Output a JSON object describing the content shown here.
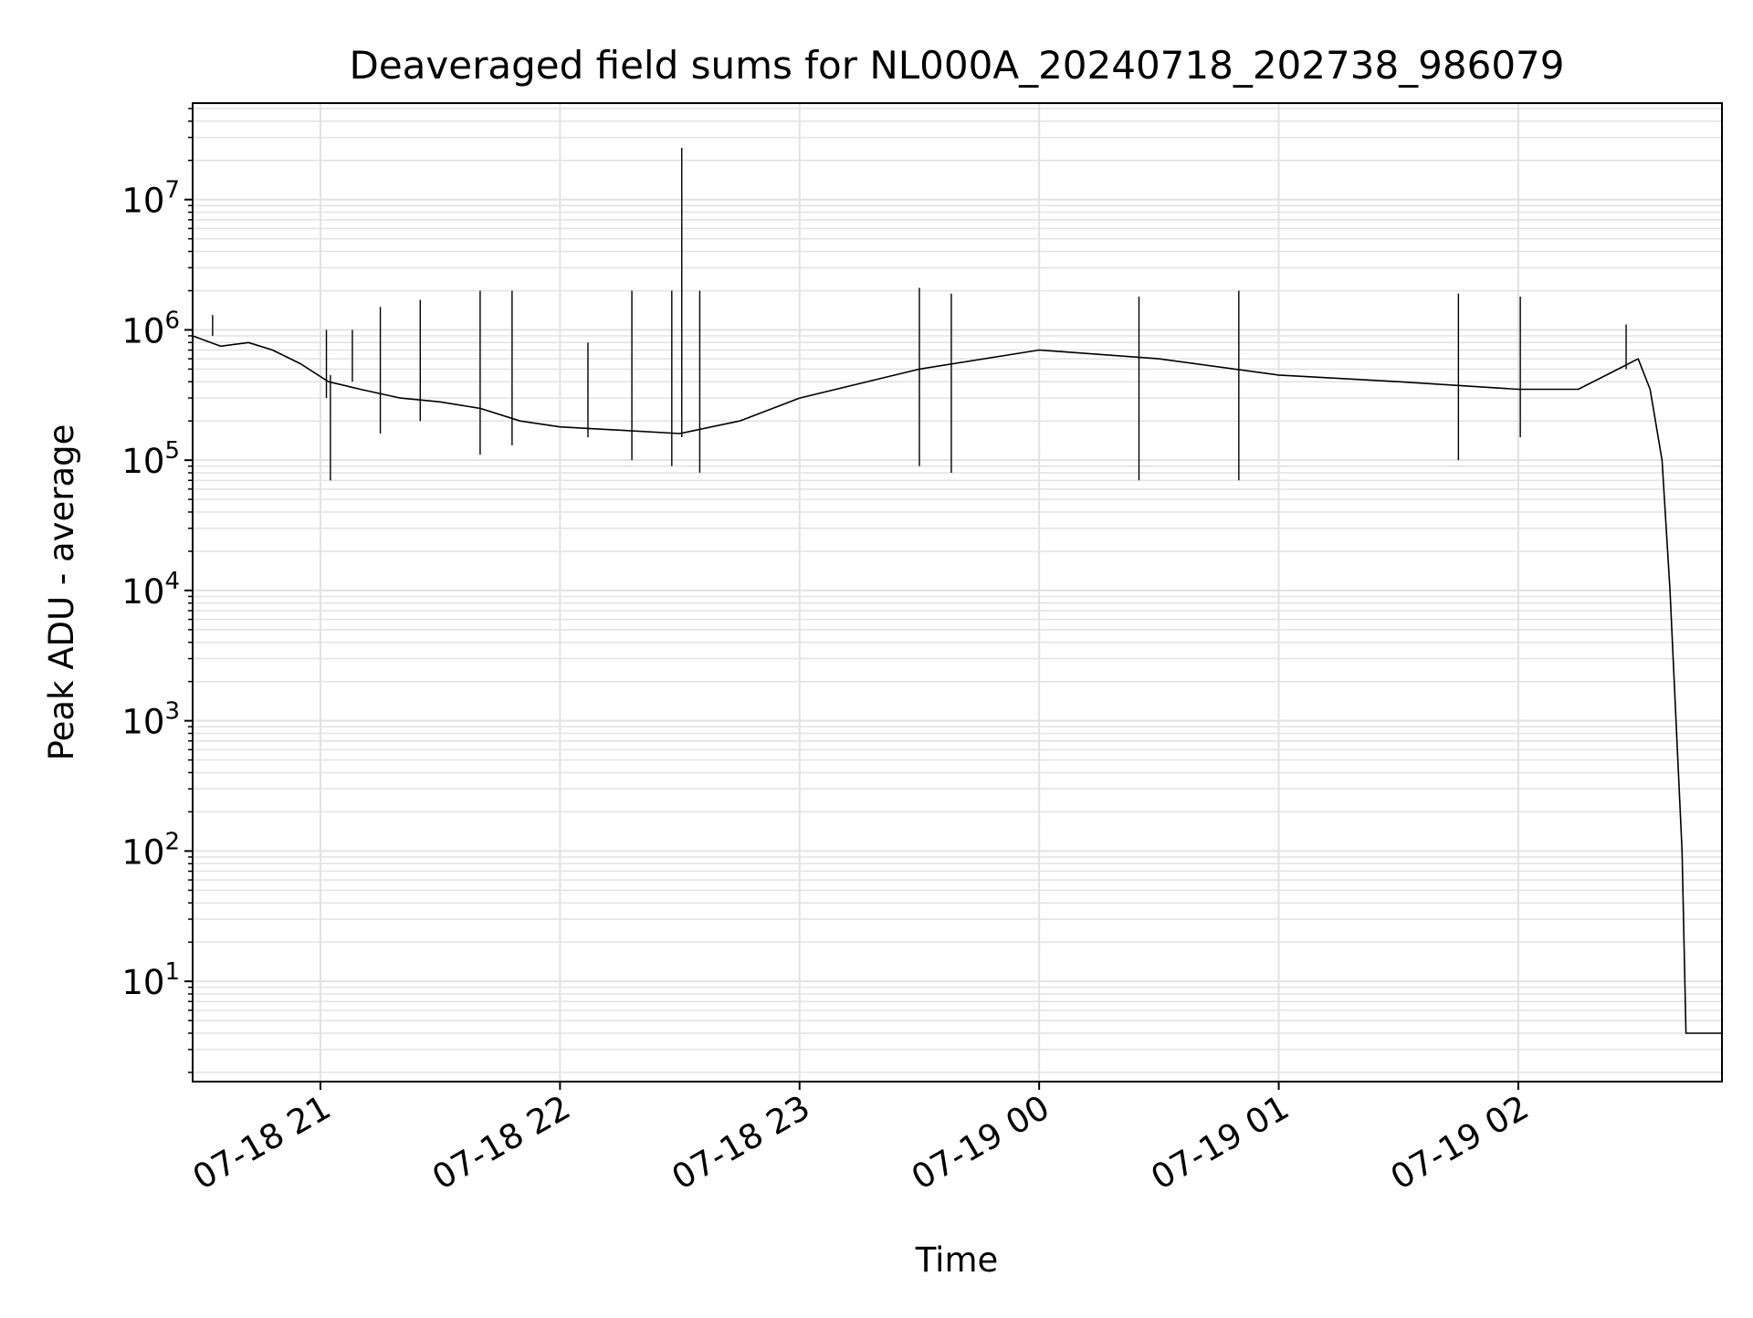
{
  "chart_data": {
    "type": "line",
    "title": "Deaveraged field sums for NL000A_20240718_202738_986079",
    "xlabel": "Time",
    "ylabel": "Peak ADU - average",
    "x_type": "time",
    "x_start": "2024-07-18T20:28:00",
    "x_end": "2024-07-19T02:51:00",
    "y_scale": "log",
    "ylim": [
      1.7,
      55000000
    ],
    "grid": true,
    "line_color": "#000000",
    "grid_color": "#e2e2e2",
    "x_ticks": [
      {
        "value": "2024-07-18T21:00:00",
        "label": "07-18 21"
      },
      {
        "value": "2024-07-18T22:00:00",
        "label": "07-18 22"
      },
      {
        "value": "2024-07-18T23:00:00",
        "label": "07-18 23"
      },
      {
        "value": "2024-07-19T00:00:00",
        "label": "07-19 00"
      },
      {
        "value": "2024-07-19T01:00:00",
        "label": "07-19 01"
      },
      {
        "value": "2024-07-19T02:00:00",
        "label": "07-19 02"
      }
    ],
    "y_ticks": [
      {
        "value": 10,
        "base": "10",
        "exp": "1"
      },
      {
        "value": 100,
        "base": "10",
        "exp": "2"
      },
      {
        "value": 1000,
        "base": "10",
        "exp": "3"
      },
      {
        "value": 10000,
        "base": "10",
        "exp": "4"
      },
      {
        "value": 100000,
        "base": "10",
        "exp": "5"
      },
      {
        "value": 1000000,
        "base": "10",
        "exp": "6"
      },
      {
        "value": 10000000,
        "base": "10",
        "exp": "7"
      }
    ],
    "series": [
      {
        "x": [
          "2024-07-18T20:28:00",
          "2024-07-18T20:35:00",
          "2024-07-18T20:42:00",
          "2024-07-18T20:48:00",
          "2024-07-18T20:55:00",
          "2024-07-18T21:02:00",
          "2024-07-18T21:10:00",
          "2024-07-18T21:20:00",
          "2024-07-18T21:30:00",
          "2024-07-18T21:40:00",
          "2024-07-18T21:50:00",
          "2024-07-18T22:00:00",
          "2024-07-18T22:15:00",
          "2024-07-18T22:30:00",
          "2024-07-18T22:45:00",
          "2024-07-18T23:00:00",
          "2024-07-18T23:30:00",
          "2024-07-19T00:00:00",
          "2024-07-19T00:30:00",
          "2024-07-19T01:00:00",
          "2024-07-19T01:30:00",
          "2024-07-19T02:00:00",
          "2024-07-19T02:15:00",
          "2024-07-19T02:25:00",
          "2024-07-19T02:30:00",
          "2024-07-19T02:33:00",
          "2024-07-19T02:36:00",
          "2024-07-19T02:38:00",
          "2024-07-19T02:39:30",
          "2024-07-19T02:41:00",
          "2024-07-19T02:42:00",
          "2024-07-19T02:51:00"
        ],
        "y": [
          900000,
          750000,
          800000,
          700000,
          550000,
          400000,
          350000,
          300000,
          280000,
          250000,
          200000,
          180000,
          170000,
          160000,
          200000,
          300000,
          500000,
          700000,
          600000,
          450000,
          400000,
          350000,
          350000,
          500000,
          600000,
          350000,
          100000,
          10000,
          1000,
          100,
          4,
          4
        ]
      }
    ],
    "spikes": [
      {
        "x": "2024-07-18T20:33:00",
        "y": [
          900000,
          1300000
        ]
      },
      {
        "x": "2024-07-18T21:01:30",
        "y": [
          300000,
          1000000
        ]
      },
      {
        "x": "2024-07-18T21:02:30",
        "y": [
          70000,
          450000
        ]
      },
      {
        "x": "2024-07-18T21:08:00",
        "y": [
          400000,
          1000000
        ]
      },
      {
        "x": "2024-07-18T21:15:00",
        "y": [
          160000,
          1500000
        ]
      },
      {
        "x": "2024-07-18T21:25:00",
        "y": [
          200000,
          1700000
        ]
      },
      {
        "x": "2024-07-18T21:40:00",
        "y": [
          110000,
          2000000
        ]
      },
      {
        "x": "2024-07-18T21:48:00",
        "y": [
          130000,
          2000000
        ]
      },
      {
        "x": "2024-07-18T22:07:00",
        "y": [
          150000,
          800000
        ]
      },
      {
        "x": "2024-07-18T22:18:00",
        "y": [
          100000,
          2000000
        ]
      },
      {
        "x": "2024-07-18T22:28:00",
        "y": [
          90000,
          2000000
        ]
      },
      {
        "x": "2024-07-18T22:30:30",
        "y": [
          150000,
          25000000
        ]
      },
      {
        "x": "2024-07-18T22:35:00",
        "y": [
          80000,
          2000000
        ]
      },
      {
        "x": "2024-07-18T23:30:00",
        "y": [
          90000,
          2100000
        ]
      },
      {
        "x": "2024-07-18T23:38:00",
        "y": [
          80000,
          1900000
        ]
      },
      {
        "x": "2024-07-19T00:25:00",
        "y": [
          70000,
          1800000
        ]
      },
      {
        "x": "2024-07-19T00:50:00",
        "y": [
          70000,
          2000000
        ]
      },
      {
        "x": "2024-07-19T01:45:00",
        "y": [
          100000,
          1900000
        ]
      },
      {
        "x": "2024-07-19T02:00:30",
        "y": [
          150000,
          1800000
        ]
      },
      {
        "x": "2024-07-19T02:27:00",
        "y": [
          500000,
          1100000
        ]
      }
    ]
  }
}
